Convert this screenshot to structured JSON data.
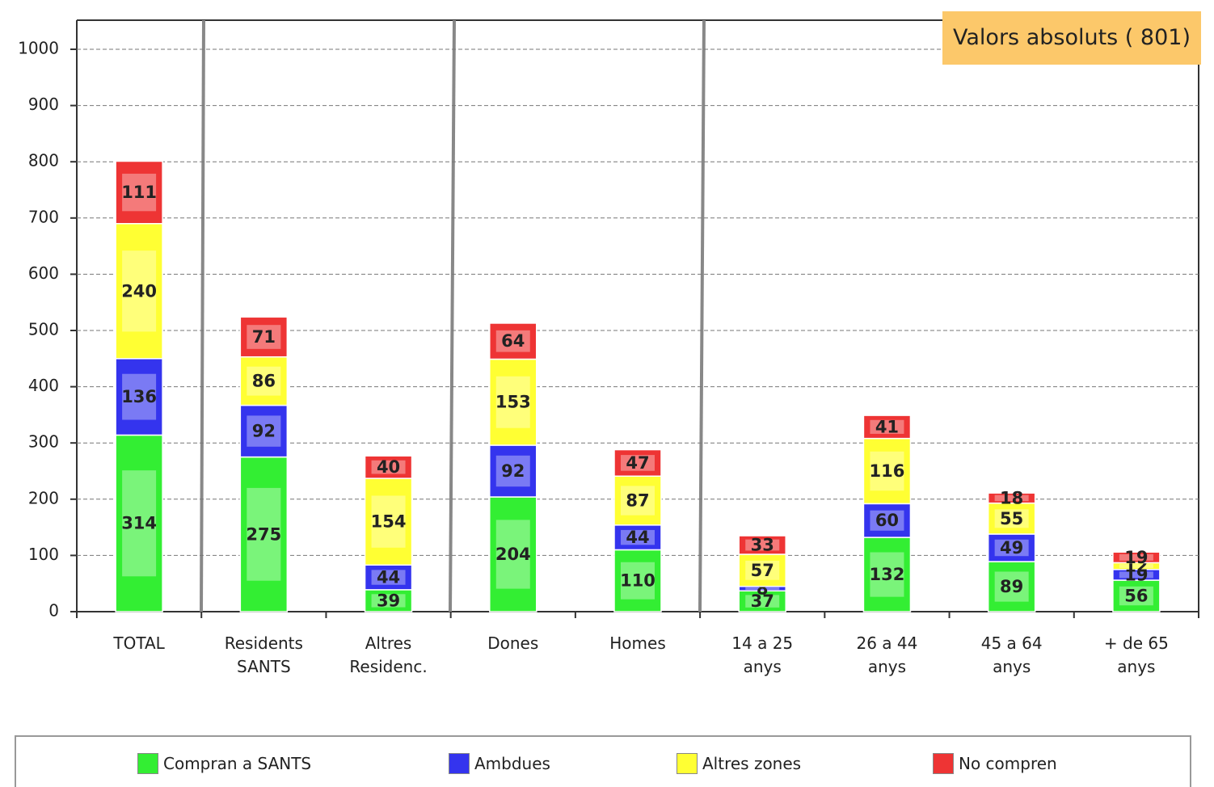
{
  "chart_data": {
    "type": "bar",
    "stacked": true,
    "title": "Valors absoluts ( 801)",
    "categories": [
      "TOTAL",
      "Residents SANTS",
      "Altres Residenc.",
      "Dones",
      "Homes",
      "14 a 25 anys",
      "26 a 44 anys",
      "45 a 64 anys",
      "+ de 65 anys"
    ],
    "series": [
      {
        "name": "Compran a SANTS",
        "color": "#33ee33",
        "values": [
          314,
          275,
          39,
          204,
          110,
          37,
          132,
          89,
          56
        ]
      },
      {
        "name": "Ambdues",
        "color": "#3434ee",
        "values": [
          136,
          92,
          44,
          92,
          44,
          8,
          60,
          49,
          19
        ]
      },
      {
        "name": "Altres zones",
        "color": "#ffff33",
        "values": [
          240,
          86,
          154,
          153,
          87,
          57,
          116,
          55,
          12
        ]
      },
      {
        "name": "No compren",
        "color": "#ee3434",
        "values": [
          111,
          71,
          40,
          64,
          47,
          33,
          41,
          18,
          19
        ]
      }
    ],
    "ylim": [
      0,
      1000
    ],
    "yticks": [
      0,
      100,
      200,
      300,
      400,
      500,
      600,
      700,
      800,
      900,
      1000
    ],
    "grid": true
  }
}
